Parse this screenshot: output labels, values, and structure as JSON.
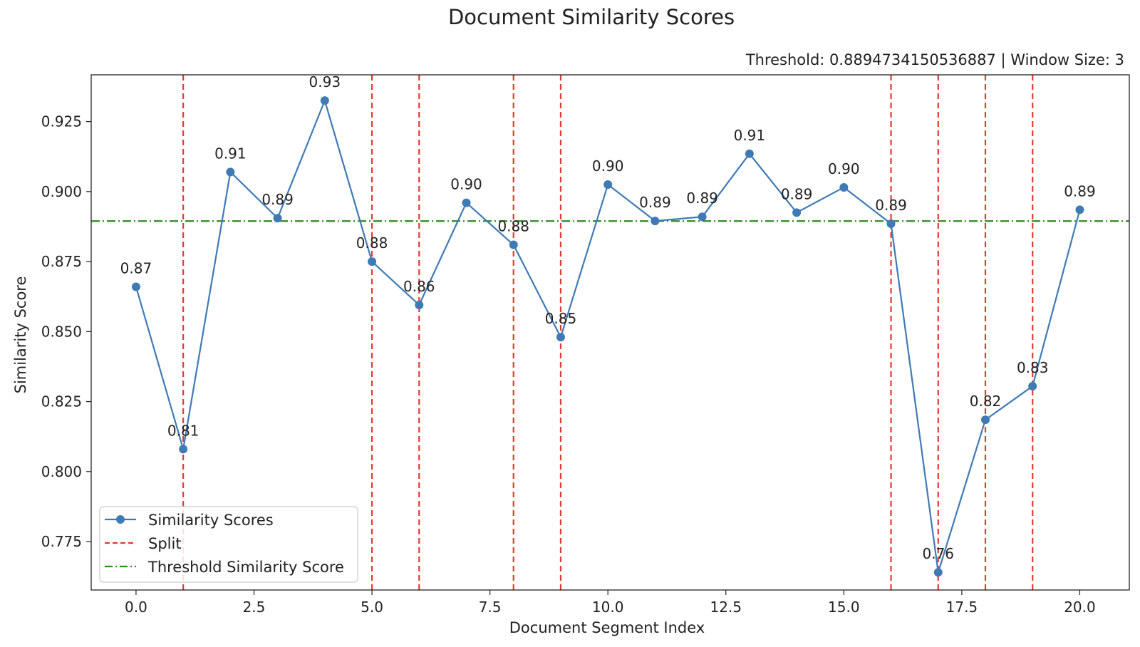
{
  "chart_data": {
    "type": "line",
    "title": "Document Similarity Scores",
    "subtitle": "Threshold: 0.8894734150536887 | Window Size: 3",
    "xlabel": "Document Segment Index",
    "ylabel": "Similarity Score",
    "xlim": [
      -0.95,
      21.05
    ],
    "ylim": [
      0.7577,
      0.9417
    ],
    "x_ticks": [
      0.0,
      2.5,
      5.0,
      7.5,
      10.0,
      12.5,
      15.0,
      17.5,
      20.0
    ],
    "x_tick_labels": [
      "0.0",
      "2.5",
      "5.0",
      "7.5",
      "10.0",
      "12.5",
      "15.0",
      "17.5",
      "20.0"
    ],
    "y_ticks": [
      0.775,
      0.8,
      0.825,
      0.85,
      0.875,
      0.9,
      0.925
    ],
    "y_tick_labels": [
      "0.775",
      "0.800",
      "0.825",
      "0.850",
      "0.875",
      "0.900",
      "0.925"
    ],
    "grid": false,
    "legend_position": "lower-left",
    "series": [
      {
        "name": "Similarity Scores",
        "color": "#3f7ab5",
        "marker": "circle",
        "x": [
          0,
          1,
          2,
          3,
          4,
          5,
          6,
          7,
          8,
          9,
          10,
          11,
          12,
          13,
          14,
          15,
          16,
          17,
          18,
          19,
          20
        ],
        "values": [
          0.866,
          0.808,
          0.907,
          0.8905,
          0.9325,
          0.875,
          0.8595,
          0.896,
          0.881,
          0.848,
          0.9025,
          0.8895,
          0.891,
          0.9135,
          0.8925,
          0.9015,
          0.8885,
          0.764,
          0.8185,
          0.8305,
          0.8935
        ],
        "data_labels": [
          "0.87",
          "0.81",
          "0.91",
          "0.89",
          "0.93",
          "0.88",
          "0.86",
          "0.90",
          "0.88",
          "0.85",
          "0.90",
          "0.89",
          "0.89",
          "0.91",
          "0.89",
          "0.90",
          "0.89",
          "0.76",
          "0.82",
          "0.83",
          "0.89"
        ]
      }
    ],
    "splits": {
      "name": "Split",
      "color": "#e03c31",
      "style": "dashed",
      "x": [
        1,
        5,
        6,
        8,
        9,
        16,
        17,
        18,
        19
      ]
    },
    "threshold": {
      "name": "Threshold Similarity Score",
      "color": "#2e8b1f",
      "style": "dash-dot",
      "value": 0.8894734150536887
    }
  }
}
